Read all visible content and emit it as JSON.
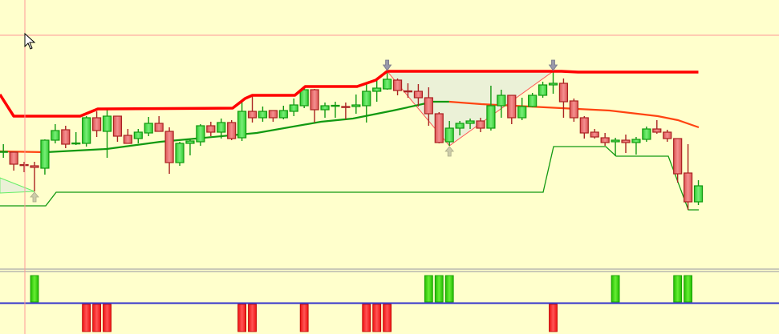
{
  "chart_data": {
    "type": "candlestick",
    "title": "",
    "xlabel": "",
    "ylabel": "",
    "grid": false,
    "colors": {
      "background": "#FFFFCC",
      "bull_body": "#55dd55",
      "bull_border": "#119911",
      "bear_body": "#e87070",
      "bear_border": "#aa2222",
      "upper_band": "#ff0000",
      "ma_up": "#119911",
      "ma_down": "#ff4411",
      "lower_band": "#119911",
      "pattern_fill": "#e8eed8",
      "pattern_edge": "#ff5555",
      "signal_buy": "#33cc11",
      "signal_sell": "#ff2222",
      "zero_line": "#3333cc",
      "crosshair": "#ff9999"
    },
    "first_index": -3,
    "candles_ohlc": [
      [
        110,
        120,
        103,
        111
      ],
      [
        110,
        110,
        87,
        95
      ],
      [
        94.5,
        98,
        85,
        93.5
      ],
      [
        93,
        98,
        61,
        91
      ],
      [
        90,
        126,
        82,
        125
      ],
      [
        125,
        145,
        121,
        137
      ],
      [
        138,
        143,
        115,
        120
      ],
      [
        120.5,
        135,
        119,
        121.5
      ],
      [
        121,
        155,
        117,
        153
      ],
      [
        153,
        161,
        129,
        137
      ],
      [
        136,
        163,
        103,
        155
      ],
      [
        155,
        155,
        123,
        130
      ],
      [
        131,
        139,
        121,
        121
      ],
      [
        127,
        139,
        121,
        135
      ],
      [
        134,
        154,
        130,
        146
      ],
      [
        146,
        155,
        136,
        136
      ],
      [
        136,
        141,
        83,
        97
      ],
      [
        97,
        123,
        93,
        121
      ],
      [
        121,
        127,
        106,
        124
      ],
      [
        123,
        145,
        118,
        143
      ],
      [
        143,
        148,
        130,
        135
      ],
      [
        135,
        152,
        127,
        147
      ],
      [
        147,
        150,
        125,
        127
      ],
      [
        128,
        175,
        124,
        161
      ],
      [
        161,
        180,
        147,
        153
      ],
      [
        153,
        167,
        148,
        161
      ],
      [
        162,
        162,
        148,
        153
      ],
      [
        153,
        168,
        151,
        162
      ],
      [
        161,
        177,
        155,
        169
      ],
      [
        168,
        190,
        165,
        188
      ],
      [
        188,
        189,
        147,
        163
      ],
      [
        163,
        172,
        153,
        168
      ],
      [
        167.5,
        173,
        153,
        168.5
      ],
      [
        167,
        172,
        151,
        166
      ],
      [
        167,
        182,
        158,
        169
      ],
      [
        168,
        195,
        147,
        186
      ],
      [
        186,
        202,
        173,
        190
      ],
      [
        189,
        212,
        188,
        201
      ],
      [
        200,
        202,
        181,
        187
      ],
      [
        186.5,
        196,
        178,
        185.5
      ],
      [
        186,
        195,
        167,
        178
      ],
      [
        178,
        191,
        143,
        158
      ],
      [
        158,
        160,
        121,
        122
      ],
      [
        123,
        149,
        118,
        140
      ],
      [
        140,
        149,
        131,
        146
      ],
      [
        146,
        152,
        139,
        149
      ],
      [
        149,
        153,
        135,
        140
      ],
      [
        140,
        193,
        137,
        168
      ],
      [
        168,
        188,
        153,
        181
      ],
      [
        181,
        181,
        145,
        153
      ],
      [
        153,
        178,
        150,
        167
      ],
      [
        167,
        184,
        166,
        181
      ],
      [
        181,
        198,
        178,
        194
      ],
      [
        194,
        212,
        183,
        196
      ],
      [
        196,
        202,
        153,
        173
      ],
      [
        174,
        177,
        148,
        153
      ],
      [
        153,
        155,
        127,
        134
      ],
      [
        135,
        139,
        127,
        129
      ],
      [
        128,
        134,
        118,
        122
      ],
      [
        123,
        128,
        105,
        125
      ],
      [
        125,
        132,
        109,
        122
      ],
      [
        122,
        129,
        107,
        126
      ],
      [
        126,
        142,
        123,
        139
      ],
      [
        139,
        150,
        133,
        135
      ],
      [
        135,
        138,
        123,
        127
      ],
      [
        127,
        127,
        72,
        83
      ],
      [
        84,
        120,
        38,
        48
      ],
      [
        48,
        75,
        44,
        68
      ]
    ],
    "upper_band": [
      [
        -3.33,
        182
      ],
      [
        -2,
        155
      ],
      [
        4.4,
        155
      ],
      [
        6.1,
        164
      ],
      [
        19.1,
        165
      ],
      [
        20.3,
        177
      ],
      [
        21,
        181
      ],
      [
        25.1,
        181
      ],
      [
        26.1,
        192
      ],
      [
        31.1,
        192
      ],
      [
        32.9,
        200
      ],
      [
        34,
        211
      ],
      [
        50.8,
        211
      ],
      [
        52.4,
        210
      ],
      [
        64,
        210
      ]
    ],
    "moving_average": [
      {
        "trend": "down",
        "points": [
          [
            -3.33,
            111
          ],
          [
            1.08,
            110
          ]
        ]
      },
      {
        "trend": "up",
        "points": [
          [
            1.08,
            110
          ],
          [
            6.96,
            114
          ],
          [
            12.14,
            123
          ],
          [
            21.42,
            134
          ],
          [
            27.61,
            148
          ],
          [
            30.7,
            152
          ],
          [
            34.57,
            162
          ],
          [
            38.44,
            173
          ],
          [
            39.98,
            173
          ]
        ]
      },
      {
        "trend": "down",
        "points": [
          [
            39.98,
            173
          ],
          [
            43.08,
            170
          ],
          [
            50.81,
            165
          ],
          [
            55.45,
            162
          ],
          [
            60.09,
            155
          ],
          [
            62.03,
            150
          ],
          [
            64.04,
            141
          ]
        ]
      }
    ],
    "lower_band": [
      [
        -3.33,
        43
      ],
      [
        1.08,
        43
      ],
      [
        2.09,
        60
      ],
      [
        49.03,
        60
      ],
      [
        50.04,
        117
      ],
      [
        55.07,
        117
      ],
      [
        56.07,
        105
      ],
      [
        61.1,
        105
      ],
      [
        63.03,
        38
      ],
      [
        64.04,
        38
      ]
    ],
    "patterns": [
      {
        "kind": "bullish",
        "points": [
          [
            -3.33,
            78
          ],
          [
            0,
            61
          ],
          [
            -3.33,
            59
          ]
        ]
      },
      {
        "kind": "bearish",
        "points": [
          [
            34,
            211
          ],
          [
            50,
            211
          ],
          [
            40,
            118
          ]
        ]
      }
    ],
    "arrows": [
      {
        "index": 34,
        "direction": "down"
      },
      {
        "index": 50,
        "direction": "down"
      },
      {
        "index": 0,
        "direction": "up"
      },
      {
        "index": 40,
        "direction": "up"
      }
    ],
    "signals": {
      "buy": [
        0,
        38,
        39,
        40,
        56,
        62,
        63
      ],
      "sell": [
        5,
        6,
        7,
        20,
        21,
        26,
        32,
        33,
        34,
        50
      ]
    }
  }
}
